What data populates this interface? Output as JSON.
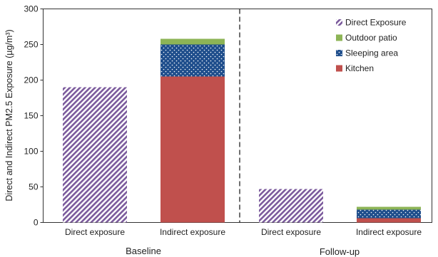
{
  "chart_data": {
    "type": "bar",
    "stacked": true,
    "ylabel": "Direct and Indirect PM2.5 Exposure (µg/m³)",
    "ylim": [
      0,
      300
    ],
    "yticks": [
      0,
      50,
      100,
      150,
      200,
      250,
      300
    ],
    "groups": [
      {
        "label": "Baseline",
        "categories": [
          "Direct exposure",
          "Indirect exposure"
        ]
      },
      {
        "label": "Follow-up",
        "categories": [
          "Direct exposure",
          "Indirect exposure"
        ]
      }
    ],
    "categories": [
      "Direct exposure",
      "Indirect exposure",
      "Direct exposure",
      "Indirect exposure"
    ],
    "series": [
      {
        "name": "Direct Exposure",
        "color": "#7B5A9C",
        "pattern": "diagonal-hatch",
        "values": [
          190,
          0,
          47,
          0
        ]
      },
      {
        "name": "Kitchen",
        "color": "#C0504D",
        "pattern": "solid",
        "values": [
          0,
          205,
          0,
          6
        ]
      },
      {
        "name": "Sleeping area",
        "color": "#1F4E8C",
        "pattern": "dots",
        "values": [
          0,
          45,
          0,
          12
        ]
      },
      {
        "name": "Outdoor patio",
        "color": "#8DB456",
        "pattern": "solid",
        "values": [
          0,
          8,
          0,
          4
        ]
      }
    ],
    "legend": {
      "position": "top-right",
      "order": [
        "Direct Exposure",
        "Outdoor patio",
        "Sleeping area",
        "Kitchen"
      ]
    },
    "separator": "dashed vertical line between groups",
    "grid": false
  }
}
